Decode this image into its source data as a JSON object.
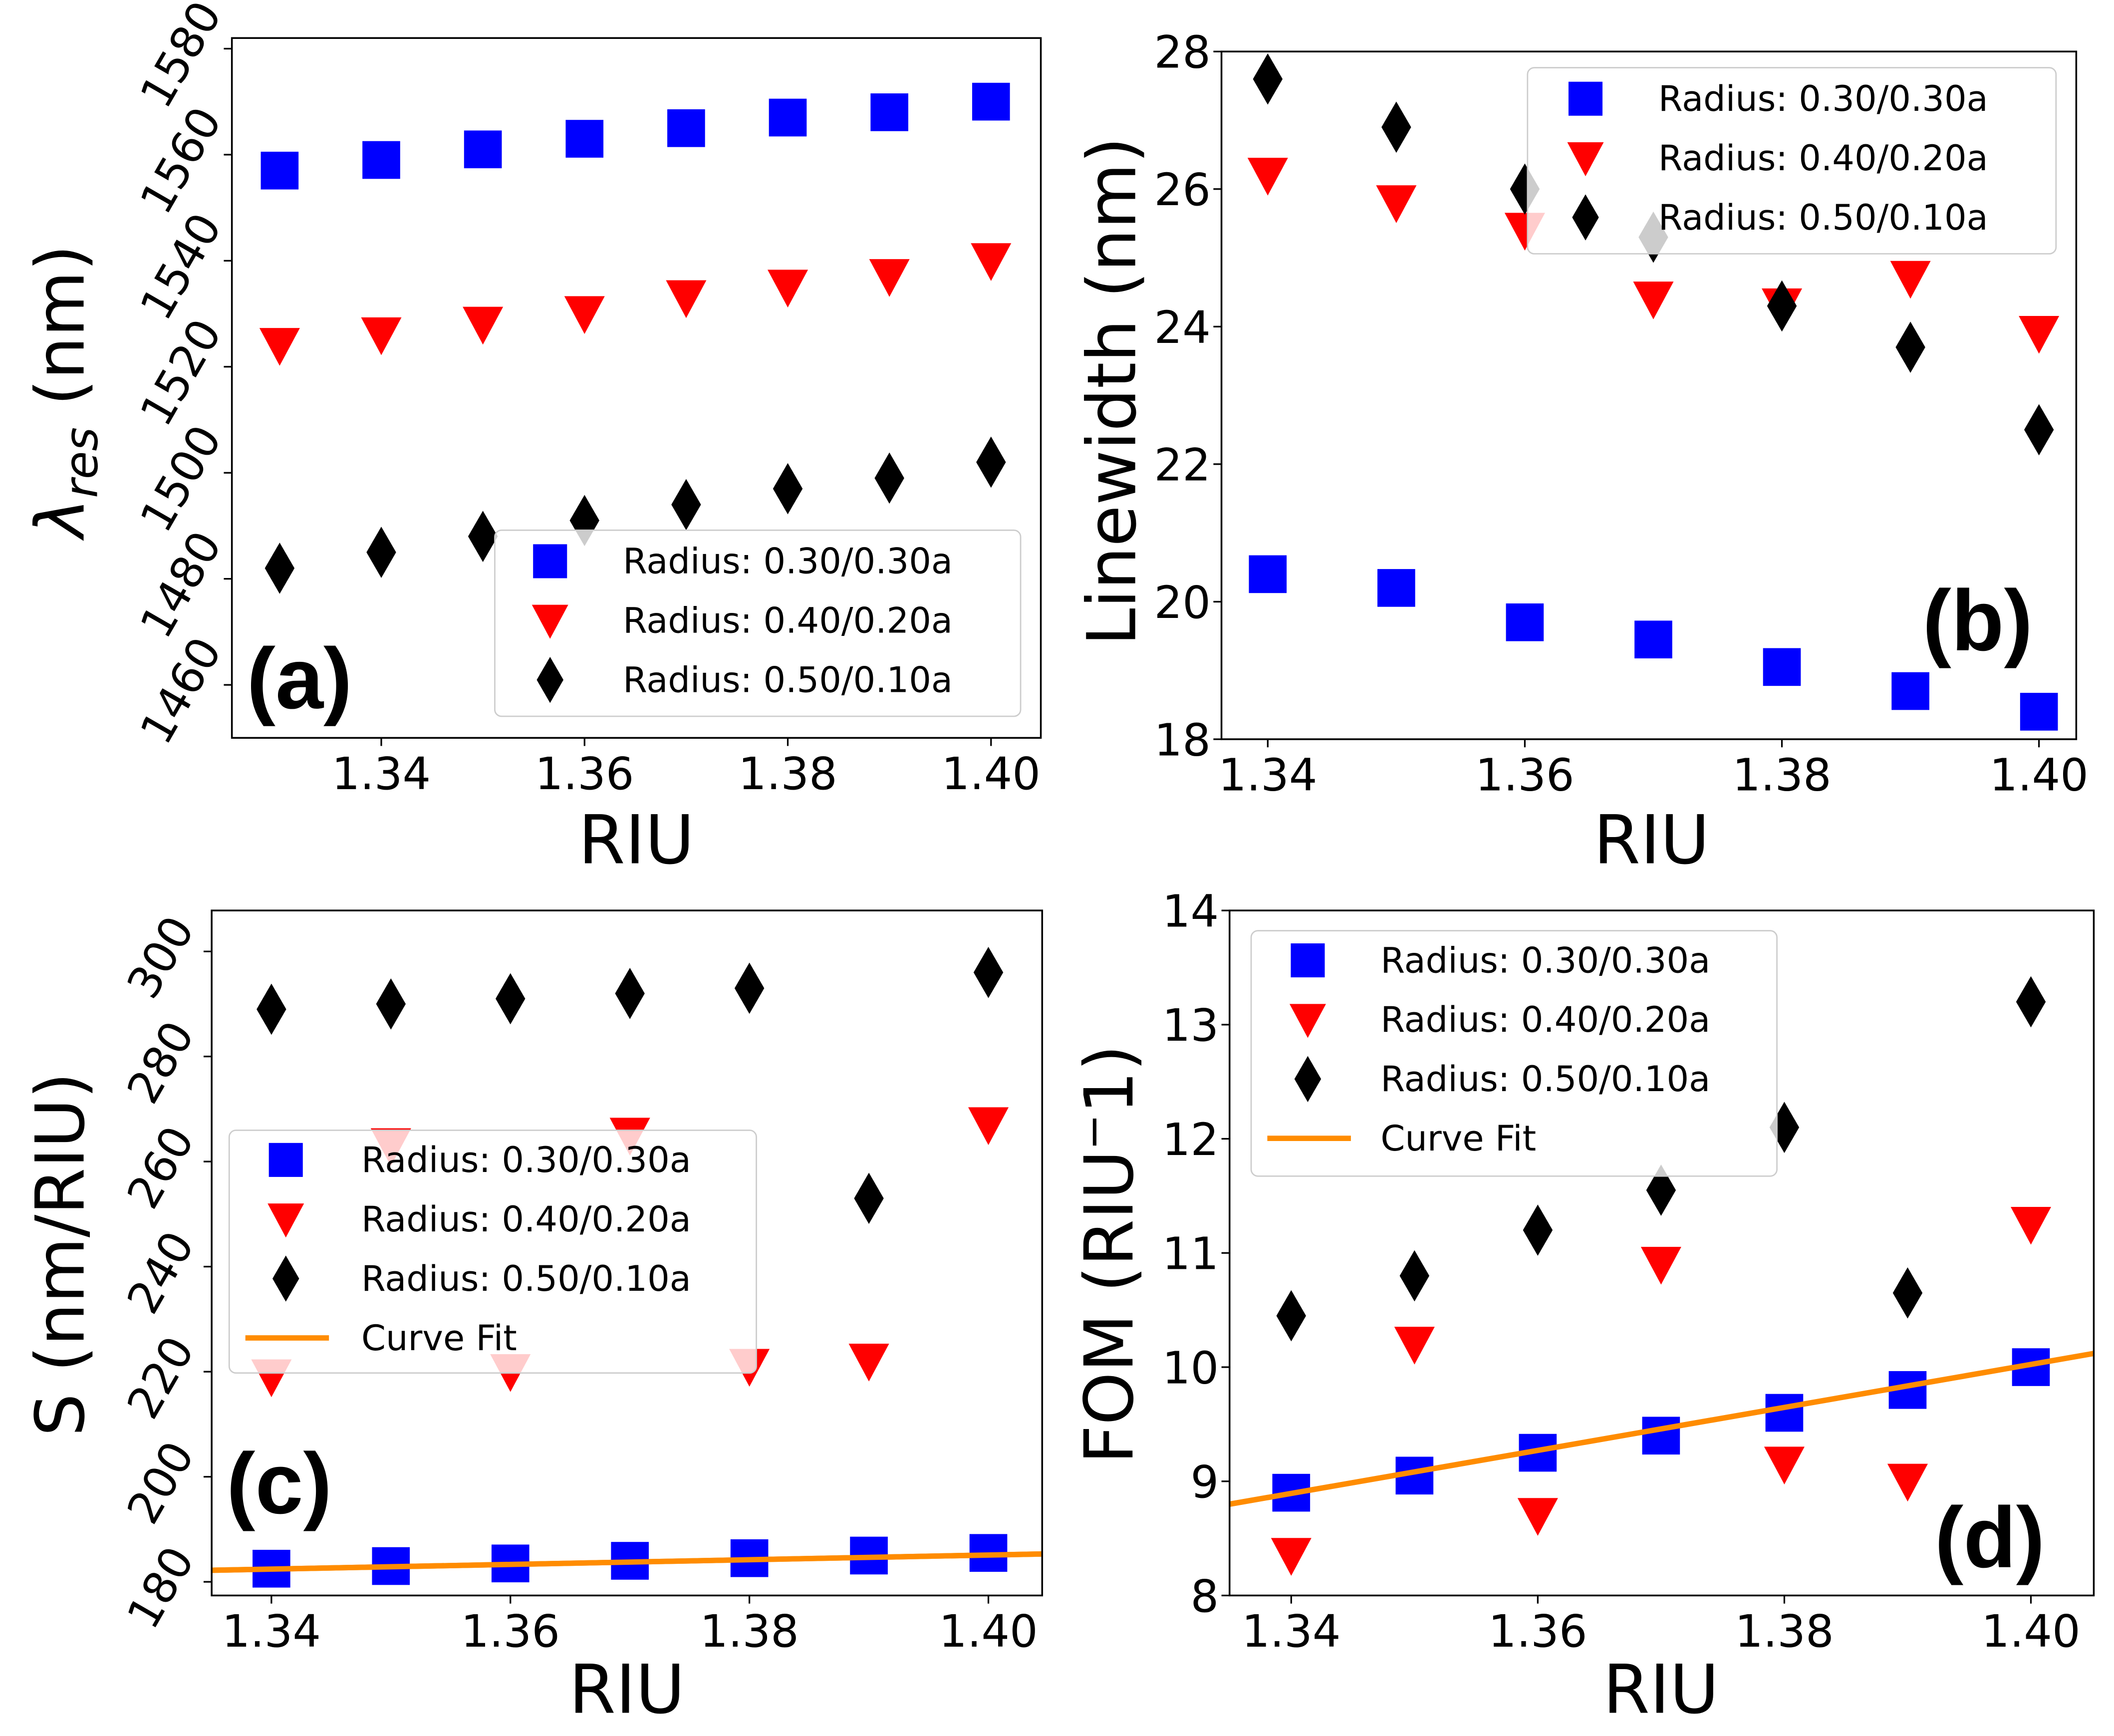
{
  "chart_data": [
    {
      "type": "scatter",
      "panel_label": "(a)",
      "xlabel": "RIU",
      "ylabel_main": "λ",
      "ylabel_sub": "res",
      "ylabel_tail": " (nm)",
      "xlim": [
        1.3253,
        1.4049
      ],
      "ylim": [
        1450,
        1582
      ],
      "xticks": [
        1.34,
        1.36,
        1.38,
        1.4
      ],
      "xtick_labels": [
        "1.34",
        "1.36",
        "1.38",
        "1.40"
      ],
      "yticks": [
        1460,
        1480,
        1500,
        1520,
        1540,
        1560,
        1580
      ],
      "ytick_labels": [
        "1460",
        "1480",
        "1500",
        "1520",
        "1540",
        "1560",
        "1580"
      ],
      "ytick_rotated": true,
      "legend_location": "lower-right",
      "x": [
        1.33,
        1.34,
        1.35,
        1.36,
        1.37,
        1.38,
        1.39,
        1.4
      ],
      "series": [
        {
          "name": "Radius: 0.30/0.30a",
          "marker": "square",
          "color": "#0000ff",
          "values": [
            1557,
            1559,
            1561,
            1563,
            1565,
            1567,
            1568,
            1570
          ]
        },
        {
          "name": "Radius: 0.40/0.20a",
          "marker": "triangle-down",
          "color": "#ff0000",
          "values": [
            1524,
            1526,
            1528,
            1530,
            1533,
            1535,
            1537,
            1540
          ]
        },
        {
          "name": "Radius: 0.50/0.10a",
          "marker": "diamond",
          "color": "#000000",
          "values": [
            1482,
            1485,
            1488,
            1491,
            1494,
            1497,
            1499,
            1502
          ]
        }
      ]
    },
    {
      "type": "scatter",
      "panel_label": "(b)",
      "xlabel": "RIU",
      "ylabel_main": "Linewidth (nm)",
      "xlim": [
        1.3364,
        1.4029
      ],
      "ylim": [
        18,
        28
      ],
      "xticks": [
        1.34,
        1.36,
        1.38,
        1.4
      ],
      "xtick_labels": [
        "1.34",
        "1.36",
        "1.38",
        "1.40"
      ],
      "yticks": [
        18,
        20,
        22,
        24,
        26,
        28
      ],
      "ytick_labels": [
        "18",
        "20",
        "22",
        "24",
        "26",
        "28"
      ],
      "ytick_rotated": false,
      "legend_location": "upper-right",
      "x": [
        1.34,
        1.35,
        1.36,
        1.37,
        1.38,
        1.39,
        1.4
      ],
      "series": [
        {
          "name": "Radius: 0.30/0.30a",
          "marker": "square",
          "color": "#0000ff",
          "values": [
            20.4,
            20.2,
            19.7,
            19.45,
            19.05,
            18.7,
            18.4
          ]
        },
        {
          "name": "Radius: 0.40/0.20a",
          "marker": "triangle-down",
          "color": "#ff0000",
          "values": [
            26.2,
            25.8,
            25.4,
            24.4,
            24.3,
            24.7,
            23.9
          ]
        },
        {
          "name": "Radius: 0.50/0.10a",
          "marker": "diamond",
          "color": "#000000",
          "values": [
            27.6,
            26.9,
            26.0,
            25.3,
            24.3,
            23.7,
            22.5
          ]
        }
      ]
    },
    {
      "type": "scatter",
      "panel_label": "(c)",
      "xlabel": "RIU",
      "ylabel_main": "S (nm/RIU)",
      "xlim": [
        1.335,
        1.4045
      ],
      "ylim": [
        177.4,
        307.8
      ],
      "xticks": [
        1.34,
        1.36,
        1.38,
        1.4
      ],
      "xtick_labels": [
        "1.34",
        "1.36",
        "1.38",
        "1.40"
      ],
      "yticks": [
        180,
        200,
        220,
        240,
        260,
        280,
        300
      ],
      "ytick_labels": [
        "180",
        "200",
        "220",
        "240",
        "260",
        "280",
        "300"
      ],
      "ytick_rotated": true,
      "legend_location": "center-left",
      "x": [
        1.34,
        1.35,
        1.36,
        1.37,
        1.38,
        1.39,
        1.4
      ],
      "series": [
        {
          "name": "Radius: 0.30/0.30a",
          "marker": "square",
          "color": "#0000ff",
          "values": [
            182.5,
            183,
            183.5,
            184,
            184.5,
            185,
            185.5
          ]
        },
        {
          "name": "Radius: 0.40/0.20a",
          "marker": "triangle-down",
          "color": "#ff0000",
          "values": [
            219,
            263,
            220,
            265,
            221,
            222,
            267
          ]
        },
        {
          "name": "Radius: 0.50/0.10a",
          "marker": "diamond",
          "color": "#000000",
          "values": [
            289,
            290,
            291,
            292,
            293,
            253,
            296
          ]
        }
      ],
      "fit": {
        "name": "Curve Fit",
        "color": "#ff8c00",
        "x": [
          1.335,
          1.4045
        ],
        "y": [
          182.2,
          185.3
        ]
      }
    },
    {
      "type": "scatter",
      "panel_label": "(d)",
      "xlabel": "RIU",
      "ylabel_main": "FOM (RIU",
      "ylabel_sup": "−",
      "ylabel_tail": "1)",
      "xlim": [
        1.335,
        1.4051
      ],
      "ylim": [
        8,
        14
      ],
      "xticks": [
        1.34,
        1.36,
        1.38,
        1.4
      ],
      "xtick_labels": [
        "1.34",
        "1.36",
        "1.38",
        "1.40"
      ],
      "yticks": [
        8,
        9,
        10,
        11,
        12,
        13,
        14
      ],
      "ytick_labels": [
        "8",
        "9",
        "10",
        "11",
        "12",
        "13",
        "14"
      ],
      "ytick_rotated": false,
      "legend_location": "upper-left",
      "x": [
        1.34,
        1.35,
        1.36,
        1.37,
        1.38,
        1.39,
        1.4
      ],
      "series": [
        {
          "name": "Radius: 0.30/0.30a",
          "marker": "square",
          "color": "#0000ff",
          "values": [
            8.9,
            9.05,
            9.25,
            9.4,
            9.6,
            9.8,
            10.0
          ]
        },
        {
          "name": "Radius: 0.40/0.20a",
          "marker": "triangle-down",
          "color": "#ff0000",
          "values": [
            8.35,
            10.2,
            8.7,
            10.9,
            9.15,
            9.0,
            11.25
          ]
        },
        {
          "name": "Radius: 0.50/0.10a",
          "marker": "diamond",
          "color": "#000000",
          "values": [
            10.45,
            10.8,
            11.2,
            11.55,
            12.1,
            10.65,
            13.2
          ]
        }
      ],
      "fit": {
        "name": "Curve Fit",
        "color": "#ff8c00",
        "x": [
          1.335,
          1.4051
        ],
        "y": [
          8.8,
          10.12
        ]
      }
    }
  ]
}
